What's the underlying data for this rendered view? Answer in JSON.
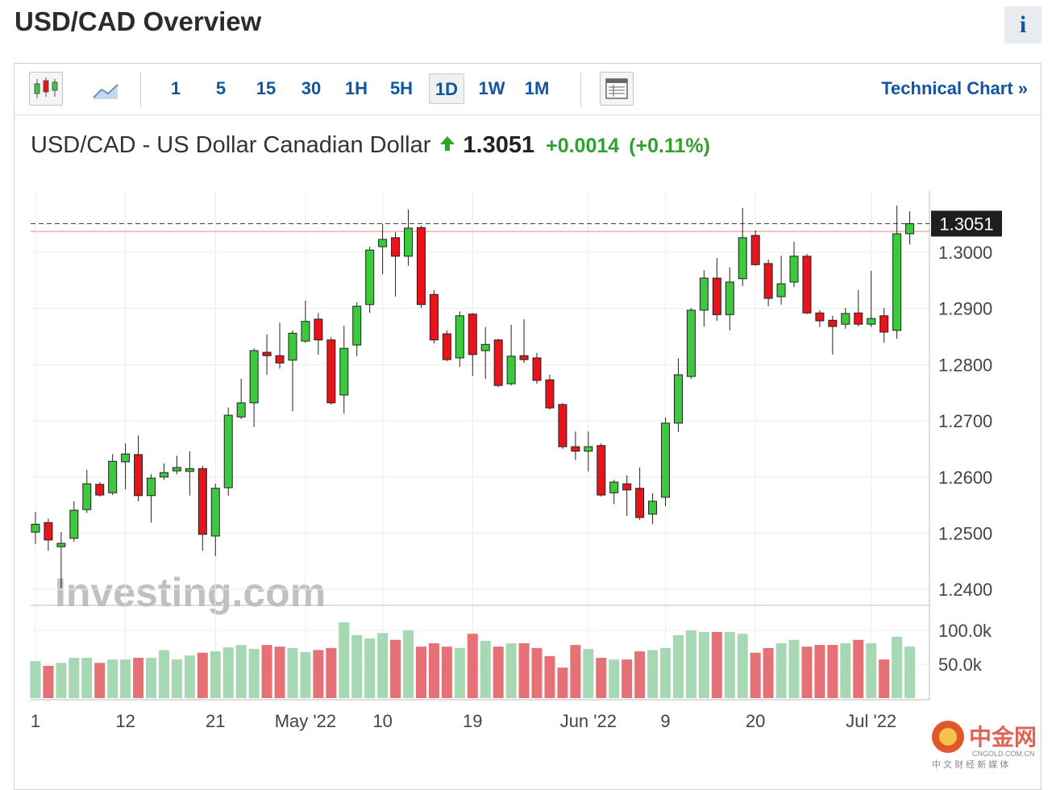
{
  "header": {
    "title": "USD/CAD Overview",
    "info": "i"
  },
  "toolbar": {
    "intervals": [
      "1",
      "5",
      "15",
      "30",
      "1H",
      "5H",
      "1D",
      "1W",
      "1M"
    ],
    "selected": 6,
    "link": "Technical Chart »"
  },
  "chart_data": {
    "type": "candlestick",
    "title": "USD/CAD - US Dollar Canadian Dollar",
    "price": "1.3051",
    "change": "+0.0014",
    "change_pct": "(+0.11%)",
    "categories": [
      "1",
      null,
      null,
      null,
      null,
      null,
      null,
      "12",
      null,
      null,
      null,
      null,
      null,
      null,
      "21",
      null,
      null,
      null,
      null,
      null,
      null,
      "May '22",
      null,
      null,
      null,
      null,
      null,
      "10",
      null,
      null,
      null,
      null,
      null,
      null,
      "19",
      null,
      null,
      null,
      null,
      null,
      null,
      null,
      null,
      "Jun '22",
      null,
      null,
      null,
      null,
      null,
      "9",
      null,
      null,
      null,
      null,
      null,
      null,
      "20",
      null,
      null,
      null,
      null,
      null,
      null,
      null,
      null,
      "Jul '22",
      null,
      null,
      null
    ],
    "open": [
      1.2502,
      1.2519,
      1.2476,
      1.2491,
      1.2542,
      1.2587,
      1.2572,
      1.2627,
      1.264,
      1.2567,
      1.26,
      1.2611,
      1.261,
      1.2615,
      1.2495,
      1.2581,
      1.2707,
      1.2732,
      1.2822,
      1.2816,
      1.2808,
      1.2842,
      1.2881,
      1.2844,
      1.2746,
      1.2835,
      1.2907,
      1.301,
      1.3026,
      1.2993,
      1.3044,
      1.2925,
      1.2855,
      1.2812,
      1.289,
      1.2825,
      1.2844,
      1.2766,
      1.2816,
      1.2812,
      1.2773,
      1.2729,
      1.2654,
      1.2646,
      1.2656,
      1.2572,
      1.2588,
      1.258,
      1.2534,
      1.2564,
      1.2696,
      1.2779,
      1.2897,
      1.2954,
      1.2889,
      1.2953,
      1.303,
      1.298,
      1.2921,
      1.2947,
      1.2993,
      1.2892,
      1.2879,
      1.2872,
      1.2892,
      1.2872,
      1.2887,
      1.2861,
      1.3033
    ],
    "high": [
      1.2538,
      1.2526,
      1.2502,
      1.2557,
      1.2613,
      1.2591,
      1.2641,
      1.266,
      1.2674,
      1.2605,
      1.2624,
      1.2638,
      1.2646,
      1.262,
      1.2588,
      1.2724,
      1.2775,
      1.2829,
      1.2854,
      1.2875,
      1.2861,
      1.2914,
      1.2892,
      1.2849,
      1.2869,
      1.2911,
      1.301,
      1.305,
      1.3036,
      1.3076,
      1.3047,
      1.2933,
      1.2861,
      1.2895,
      1.2892,
      1.2867,
      1.2846,
      1.2871,
      1.2881,
      1.2821,
      1.2782,
      1.2732,
      1.2681,
      1.2681,
      1.266,
      1.2595,
      1.2603,
      1.2617,
      1.2571,
      1.2706,
      1.2811,
      1.2901,
      1.2968,
      1.299,
      1.2973,
      1.3079,
      1.3039,
      1.2987,
      1.2994,
      1.3019,
      1.2997,
      1.2897,
      1.2887,
      1.2901,
      1.2933,
      1.2967,
      1.2901,
      1.3083,
      1.3073
    ],
    "low": [
      1.2481,
      1.2469,
      1.2402,
      1.2485,
      1.2536,
      1.2565,
      1.2568,
      1.2578,
      1.2557,
      1.2519,
      1.2595,
      1.2605,
      1.2567,
      1.2469,
      1.2459,
      1.2567,
      1.2703,
      1.2689,
      1.2782,
      1.2793,
      1.2717,
      1.2839,
      1.2818,
      1.2729,
      1.2713,
      1.2815,
      1.2892,
      1.2961,
      1.2921,
      1.2976,
      1.2901,
      1.2838,
      1.2806,
      1.2796,
      1.278,
      1.2775,
      1.276,
      1.2763,
      1.2803,
      1.2766,
      1.272,
      1.265,
      1.263,
      1.261,
      1.2565,
      1.2552,
      1.2531,
      1.2524,
      1.2516,
      1.2548,
      1.268,
      1.2775,
      1.2868,
      1.2878,
      1.2861,
      1.294,
      1.2976,
      1.2904,
      1.2907,
      1.2938,
      1.289,
      1.2867,
      1.2818,
      1.2864,
      1.2868,
      1.2867,
      1.2839,
      1.2846,
      1.3014
    ],
    "close": [
      1.2516,
      1.2488,
      1.2482,
      1.2541,
      1.2588,
      1.2568,
      1.2628,
      1.2641,
      1.2567,
      1.2598,
      1.2608,
      1.2617,
      1.2615,
      1.2498,
      1.258,
      1.271,
      1.2732,
      1.2825,
      1.2816,
      1.2803,
      1.2856,
      1.2877,
      1.2844,
      1.2732,
      1.2829,
      1.2904,
      1.3004,
      1.3023,
      1.2993,
      1.3043,
      1.2907,
      1.2844,
      1.2809,
      1.2887,
      1.2818,
      1.2836,
      1.2763,
      1.2815,
      1.2809,
      1.2772,
      1.2723,
      1.2654,
      1.2646,
      1.2654,
      1.2568,
      1.2591,
      1.2577,
      1.2528,
      1.2557,
      1.2696,
      1.2782,
      1.2897,
      1.2954,
      1.2889,
      1.2947,
      1.3026,
      1.2978,
      1.2918,
      1.2944,
      1.2993,
      1.2892,
      1.2878,
      1.2868,
      1.2891,
      1.2872,
      1.2882,
      1.2858,
      1.3033,
      1.3051
    ],
    "volume": [
      54700,
      47600,
      52000,
      59500,
      59500,
      52000,
      57000,
      57000,
      59500,
      59500,
      71000,
      57000,
      63000,
      67000,
      69000,
      75000,
      78500,
      72600,
      78500,
      76000,
      74000,
      68000,
      71000,
      74000,
      112000,
      93000,
      88000,
      96000,
      86000,
      100000,
      76000,
      81000,
      76000,
      74000,
      95000,
      84500,
      76000,
      81000,
      81000,
      74000,
      62000,
      45000,
      78500,
      72600,
      59500,
      57000,
      57000,
      69000,
      71000,
      74000,
      93000,
      100000,
      97600,
      97600,
      97600,
      95000,
      67000,
      74000,
      81000,
      86000,
      76000,
      78500,
      78500,
      81000,
      86000,
      81000,
      57000,
      90500,
      76000
    ],
    "up_color": "#3dc93d",
    "down_color": "#e8141c",
    "volume_up_color": "#a6d8b4",
    "volume_down_color": "#e57075",
    "ylim": [
      1.2373,
      1.3109
    ],
    "yticks": [
      {
        "value": 1.24,
        "label": "1.2400"
      },
      {
        "value": 1.25,
        "label": "1.2500"
      },
      {
        "value": 1.26,
        "label": "1.2600"
      },
      {
        "value": 1.27,
        "label": "1.2700"
      },
      {
        "value": 1.28,
        "label": "1.2800"
      },
      {
        "value": 1.29,
        "label": "1.2900"
      },
      {
        "value": 1.3,
        "label": "1.3000"
      }
    ],
    "y2lim": [
      0,
      135700
    ],
    "y2ticks": [
      {
        "value": 50000,
        "label": "50.0k"
      },
      {
        "value": 100000,
        "label": "100.0k"
      }
    ],
    "last_value": 1.3051,
    "reference_line": 1.3037,
    "grid": true,
    "watermark": "Investing.com",
    "logo": {
      "name": "中金网",
      "domain": "CNGOLD.COM.CN",
      "slogan": "中 文 财 经 新 媒 体"
    }
  }
}
